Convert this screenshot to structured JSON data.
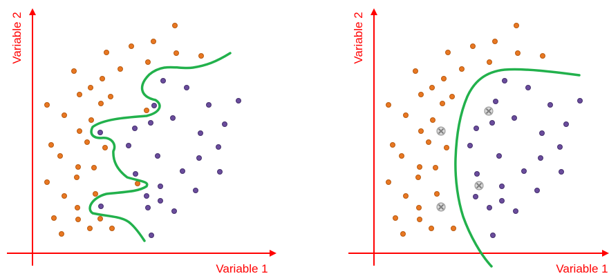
{
  "colors": {
    "axis": "#ff0000",
    "class_a": "#e87722",
    "class_b": "#6a4c9c",
    "boundary": "#22b14c",
    "unknown": "#a6a6a6"
  },
  "left": {
    "x_label": "Variable 1",
    "y_label": "Variable 2"
  },
  "right": {
    "x_label": "Variable 1",
    "y_label": "Variable 2"
  }
}
